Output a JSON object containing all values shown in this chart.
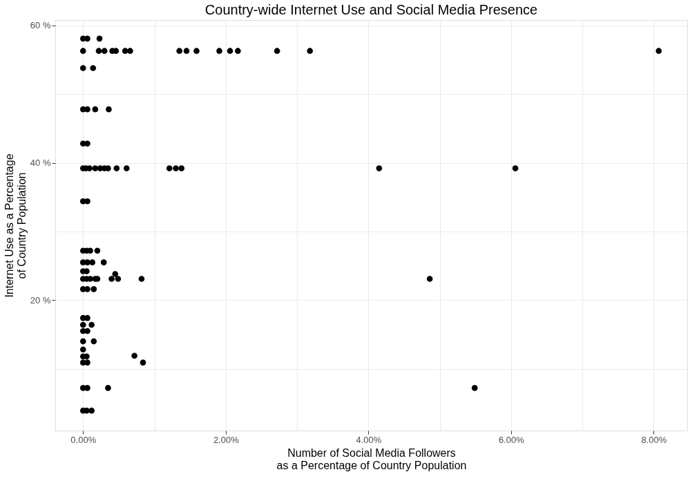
{
  "chart_data": {
    "type": "scatter",
    "title": "Country-wide Internet Use and Social Media Presence",
    "xlabel": "Number of Social Media Followers\nas a Percentage of Country Population",
    "ylabel": "Internet Use as a Percentage\nof Country Population",
    "marker": "circle",
    "grid": true,
    "xlim": [
      -0.39,
      8.47
    ],
    "xticks": [
      {
        "value": 0,
        "label": "0.00%"
      },
      {
        "value": 1,
        "label": null
      },
      {
        "value": 2,
        "label": "2.00%"
      },
      {
        "value": 3,
        "label": null
      },
      {
        "value": 4,
        "label": "4.00%"
      },
      {
        "value": 5,
        "label": null
      },
      {
        "value": 6,
        "label": "6.00%"
      },
      {
        "value": 7,
        "label": null
      },
      {
        "value": 8,
        "label": "8.00%"
      }
    ],
    "ylim": [
      1.0,
      60.8
    ],
    "yticks": [
      {
        "value": 10,
        "label": null
      },
      {
        "value": 20,
        "label": "20 %"
      },
      {
        "value": 30,
        "label": null
      },
      {
        "value": 40,
        "label": "40 %"
      },
      {
        "value": 50,
        "label": null
      },
      {
        "value": 60,
        "label": "60 %"
      }
    ],
    "series": [
      {
        "color": "#000000",
        "x": [
          0.0,
          0.06,
          0.23,
          0.0,
          0.22,
          0.3,
          0.41,
          0.46,
          0.59,
          0.66,
          1.35,
          1.45,
          1.59,
          1.91,
          2.06,
          2.17,
          2.72,
          3.18,
          8.07,
          0.0,
          0.14,
          0.0,
          0.06,
          0.17,
          0.36,
          0.0,
          0.06,
          0.0,
          0.04,
          0.09,
          0.17,
          0.24,
          0.3,
          0.35,
          0.47,
          0.61,
          1.21,
          1.3,
          1.38,
          4.15,
          6.06,
          0.0,
          0.06,
          0.0,
          0.05,
          0.1,
          0.2,
          0.0,
          0.06,
          0.13,
          0.29,
          0.0,
          0.05,
          0.45,
          0.0,
          0.05,
          0.1,
          0.17,
          0.2,
          0.4,
          0.49,
          0.82,
          4.86,
          0.0,
          0.06,
          0.15,
          0.0,
          0.06,
          0.0,
          0.12,
          0.0,
          0.06,
          0.0,
          0.15,
          0.0,
          0.0,
          0.05,
          0.72,
          0.0,
          0.06,
          0.84,
          0.0,
          0.06,
          0.35,
          5.49,
          0.0,
          0.05,
          0.12
        ],
        "values": [
          58.1,
          58.1,
          58.1,
          56.3,
          56.3,
          56.3,
          56.3,
          56.3,
          56.3,
          56.3,
          56.3,
          56.3,
          56.3,
          56.3,
          56.3,
          56.3,
          56.3,
          56.3,
          56.3,
          53.8,
          53.8,
          47.8,
          47.8,
          47.8,
          47.8,
          42.8,
          42.8,
          39.2,
          39.2,
          39.2,
          39.2,
          39.2,
          39.2,
          39.2,
          39.2,
          39.2,
          39.2,
          39.2,
          39.2,
          39.2,
          39.2,
          34.4,
          34.4,
          27.2,
          27.2,
          27.2,
          27.2,
          25.5,
          25.5,
          25.5,
          25.5,
          24.2,
          24.2,
          23.8,
          23.1,
          23.1,
          23.1,
          23.1,
          23.1,
          23.1,
          23.1,
          23.1,
          23.1,
          21.6,
          21.6,
          21.6,
          17.4,
          17.4,
          16.4,
          16.4,
          15.5,
          15.5,
          14.0,
          14.0,
          12.8,
          11.8,
          11.8,
          11.9,
          10.9,
          10.9,
          10.9,
          7.2,
          7.2,
          7.2,
          7.2,
          3.9,
          3.9,
          3.9
        ]
      }
    ]
  }
}
